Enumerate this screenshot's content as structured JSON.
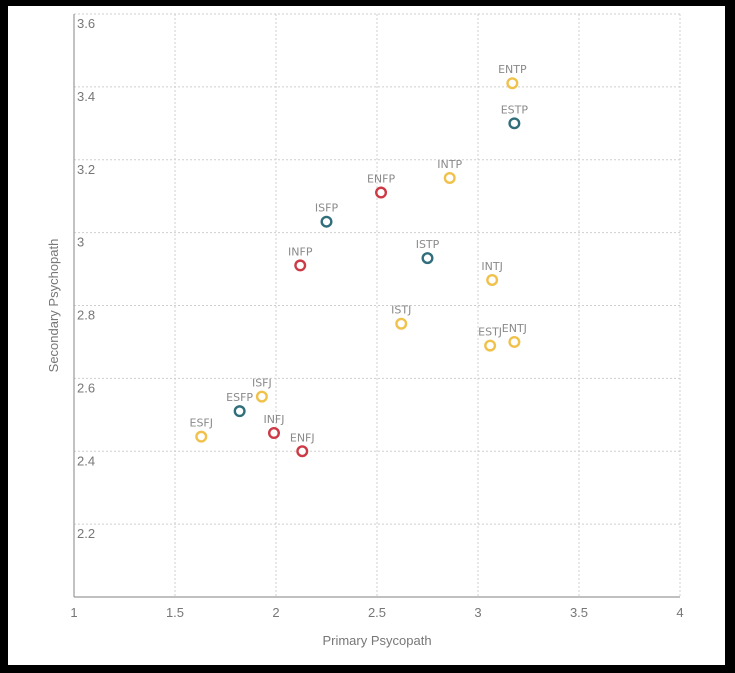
{
  "chart_data": {
    "type": "scatter",
    "title": "",
    "xlabel": "Primary Psycopath",
    "ylabel": "Secondary Psychopath",
    "xlim": [
      1,
      4
    ],
    "ylim": [
      2.0,
      3.6
    ],
    "x_ticks": [
      1,
      1.5,
      2,
      2.5,
      3,
      3.5,
      4
    ],
    "x_tick_labels": [
      "1",
      "1.5",
      "2",
      "2.5",
      "3",
      "3.5",
      "4"
    ],
    "y_ticks": [
      2.2,
      2.4,
      2.6,
      2.8,
      3.0,
      3.2,
      3.4,
      3.6
    ],
    "y_tick_labels": [
      "2.2",
      "2.4",
      "2.6",
      "2.8",
      "3",
      "3.2",
      "3.4",
      "3.6"
    ],
    "grid": true,
    "colors": {
      "yellow": "#f0c14b",
      "teal": "#2f6e7a",
      "red": "#cc3a45"
    },
    "points": [
      {
        "label": "ENTP",
        "x": 3.17,
        "y": 3.41,
        "color": "yellow"
      },
      {
        "label": "ESTP",
        "x": 3.18,
        "y": 3.3,
        "color": "teal"
      },
      {
        "label": "INTP",
        "x": 2.86,
        "y": 3.15,
        "color": "yellow"
      },
      {
        "label": "ENFP",
        "x": 2.52,
        "y": 3.11,
        "color": "red"
      },
      {
        "label": "ISFP",
        "x": 2.25,
        "y": 3.03,
        "color": "teal"
      },
      {
        "label": "ISTP",
        "x": 2.75,
        "y": 2.93,
        "color": "teal"
      },
      {
        "label": "INFP",
        "x": 2.12,
        "y": 2.91,
        "color": "red"
      },
      {
        "label": "INTJ",
        "x": 3.07,
        "y": 2.87,
        "color": "yellow"
      },
      {
        "label": "ISTJ",
        "x": 2.62,
        "y": 2.75,
        "color": "yellow"
      },
      {
        "label": "ESTJ",
        "x": 3.06,
        "y": 2.69,
        "color": "yellow"
      },
      {
        "label": "ENTJ",
        "x": 3.18,
        "y": 2.7,
        "color": "yellow"
      },
      {
        "label": "ISFJ",
        "x": 1.93,
        "y": 2.55,
        "color": "yellow"
      },
      {
        "label": "ESFP",
        "x": 1.82,
        "y": 2.51,
        "color": "teal"
      },
      {
        "label": "INFJ",
        "x": 1.99,
        "y": 2.45,
        "color": "red"
      },
      {
        "label": "ESFJ",
        "x": 1.63,
        "y": 2.44,
        "color": "yellow"
      },
      {
        "label": "ENFJ",
        "x": 2.13,
        "y": 2.4,
        "color": "red"
      }
    ]
  }
}
